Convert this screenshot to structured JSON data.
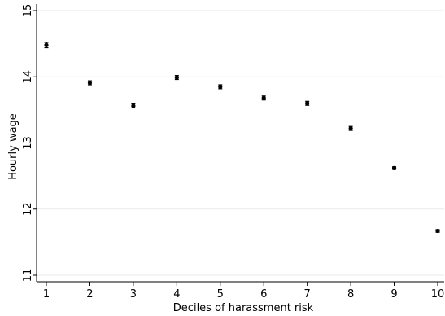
{
  "chart_data": {
    "type": "scatter",
    "xlabel": "Deciles of harassment risk",
    "ylabel": "Hourly wage",
    "x_ticks": [
      "1",
      "2",
      "3",
      "4",
      "5",
      "6",
      "7",
      "8",
      "9",
      "10"
    ],
    "y_ticks": [
      "11",
      "12",
      "13",
      "14",
      "15"
    ],
    "xlim": [
      1,
      10
    ],
    "ylim": [
      11,
      15
    ],
    "grid": "horizontal",
    "error_bars": true,
    "series": [
      {
        "x": [
          1,
          2,
          3,
          4,
          5,
          6,
          7,
          8,
          9,
          10
        ],
        "y": [
          14.48,
          13.91,
          13.56,
          13.99,
          13.85,
          13.68,
          13.6,
          13.22,
          12.62,
          11.67
        ],
        "ci_low": [
          14.44,
          13.88,
          13.53,
          13.96,
          13.82,
          13.65,
          13.57,
          13.19,
          12.6,
          11.65
        ],
        "ci_high": [
          14.52,
          13.94,
          13.59,
          14.02,
          13.88,
          13.71,
          13.63,
          13.25,
          12.64,
          11.69
        ]
      }
    ],
    "colors": {
      "marker": "#000000",
      "grid": "#eaeaea",
      "axis": "#000000"
    }
  }
}
